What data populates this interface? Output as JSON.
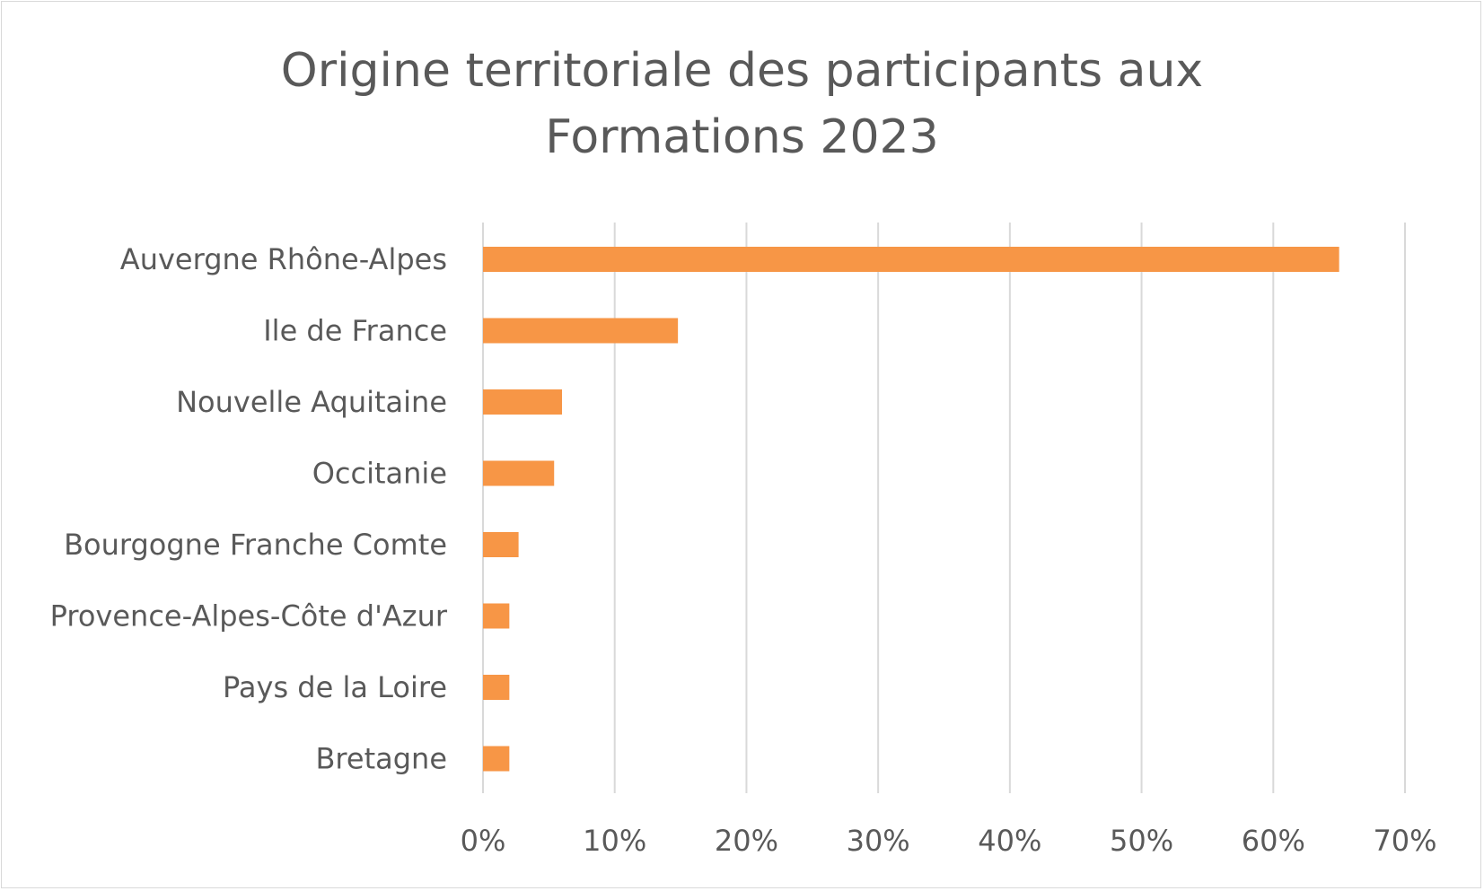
{
  "chart_data": {
    "type": "bar",
    "orientation": "horizontal",
    "title": "Origine territoriale des participants aux Formations 2023",
    "title_lines": [
      "Origine territoriale des participants aux",
      "Formations 2023"
    ],
    "categories": [
      "Auvergne Rhône-Alpes",
      "Ile de France",
      "Nouvelle Aquitaine",
      "Occitanie",
      "Bourgogne Franche Comte",
      "Provence-Alpes-Côte d'Azur",
      "Pays de la Loire",
      "Bretagne"
    ],
    "values": [
      65,
      14.8,
      6,
      5.4,
      2.7,
      2,
      2,
      2
    ],
    "xlim": [
      0,
      70
    ],
    "x_ticks": [
      0,
      10,
      20,
      30,
      40,
      50,
      60,
      70
    ],
    "x_tick_labels": [
      "0%",
      "10%",
      "20%",
      "30%",
      "40%",
      "50%",
      "60%",
      "70%"
    ],
    "xlabel": "",
    "ylabel": "",
    "grid": "vertical",
    "legend": "none",
    "bar_color": "#f79646",
    "grid_color": "#d9d9d9",
    "text_color": "#595959"
  }
}
